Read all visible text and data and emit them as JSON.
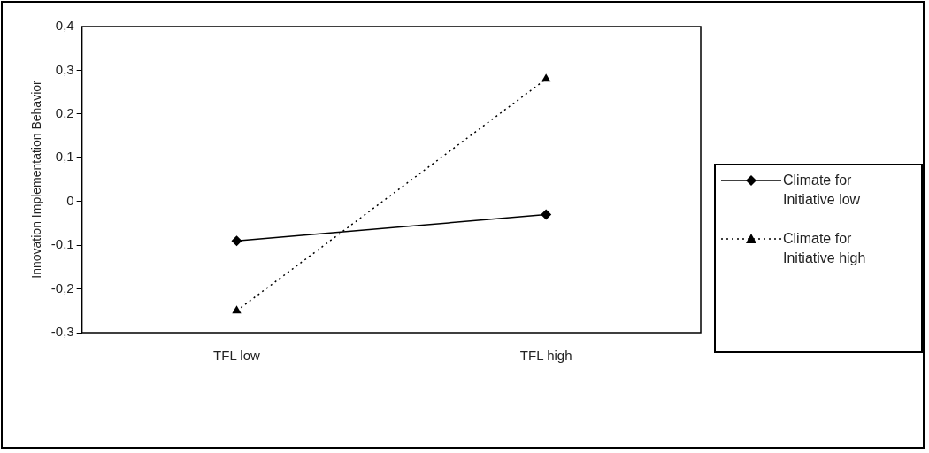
{
  "chart_data": {
    "type": "line",
    "ylabel": "Innovation Implementation Behavior",
    "categories": [
      "TFL low",
      "TFL high"
    ],
    "series": [
      {
        "name": "Climate for Initiative low",
        "color": "#000000",
        "values": [
          -0.09,
          -0.03
        ],
        "marker": "diamond",
        "line_style": "solid"
      },
      {
        "name": "Climate for Initiative high",
        "color": "#000000",
        "values": [
          -0.25,
          0.28
        ],
        "marker": "triangle",
        "line_style": "dotted"
      }
    ],
    "ylim": [
      -0.3,
      0.4
    ],
    "yticks": [
      {
        "value": -0.3,
        "label": "-0,3"
      },
      {
        "value": -0.2,
        "label": "-0,2"
      },
      {
        "value": -0.1,
        "label": "-0,1"
      },
      0,
      {
        "value": 0.1,
        "label": "0,1"
      },
      {
        "value": 0.2,
        "label": "0,2"
      },
      {
        "value": 0.3,
        "label": "0,3"
      },
      {
        "value": 0.4,
        "label": "0,4"
      }
    ],
    "grid": false,
    "legend": "right"
  }
}
